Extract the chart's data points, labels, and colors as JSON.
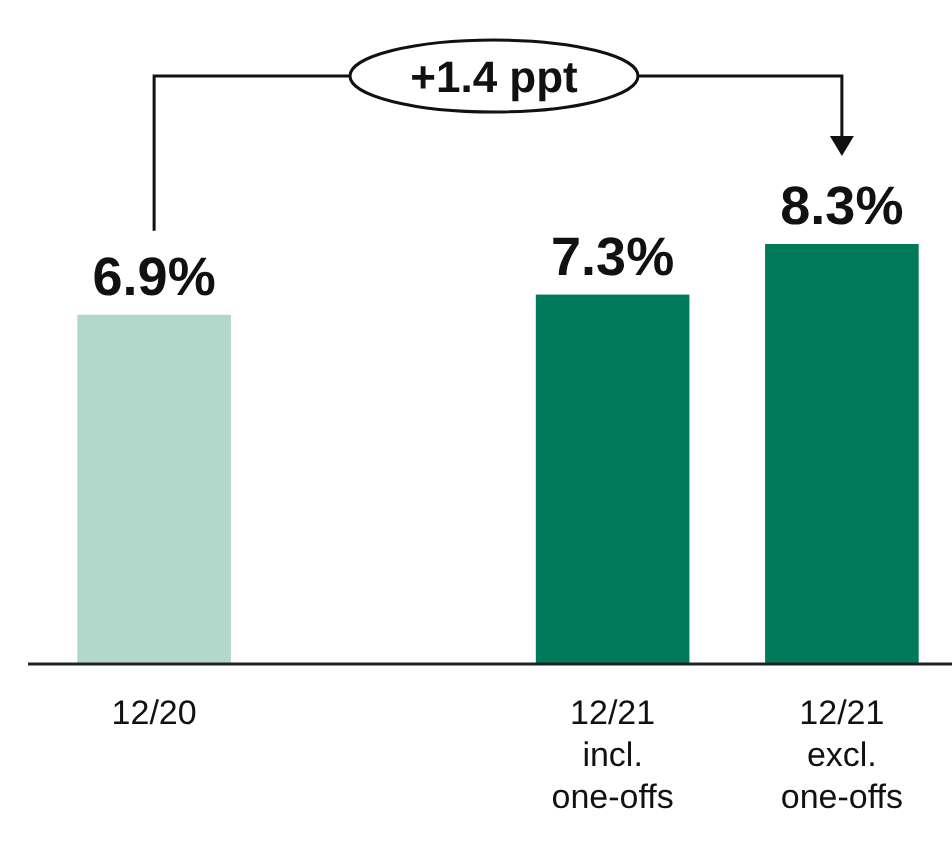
{
  "chart_data": {
    "type": "bar",
    "categories": [
      "12/20",
      null,
      "12/21\nincl.\none-offs",
      "12/21\nexcl.\none-offs"
    ],
    "values": [
      6.9,
      null,
      7.3,
      8.3
    ],
    "colors": [
      "#b2d8cb",
      null,
      "#007a5a",
      "#007a5a"
    ],
    "data_labels": true,
    "value_labels": [
      "6.9%",
      null,
      "7.3%",
      "8.3%"
    ],
    "annotations": [
      "+1.4 ppt"
    ]
  }
}
